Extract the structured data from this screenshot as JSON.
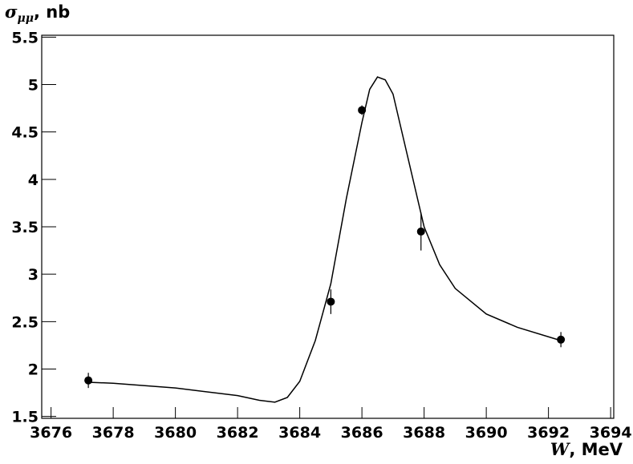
{
  "chart_data": {
    "type": "scatter",
    "ylabel": [
      "σ",
      "μμ",
      ", nb"
    ],
    "xlabel": [
      "W",
      ", MeV"
    ],
    "xlim": [
      3675.7,
      3694.1
    ],
    "ylim": [
      1.48,
      5.52
    ],
    "xticks": [
      3676,
      3678,
      3680,
      3682,
      3684,
      3686,
      3688,
      3690,
      3692,
      3694
    ],
    "yticks": [
      1.5,
      2,
      2.5,
      3,
      3.5,
      4,
      4.5,
      5,
      5.5
    ],
    "series": [
      {
        "kind": "points",
        "color": "#000000",
        "x": [
          3677.2,
          3685.0,
          3686.0,
          3687.9,
          3692.4
        ],
        "values": [
          1.88,
          2.71,
          4.73,
          3.45,
          2.31
        ],
        "errors": [
          0.08,
          0.13,
          0.05,
          0.2,
          0.08
        ]
      },
      {
        "kind": "line",
        "color": "#000000",
        "x": [
          3677.2,
          3678,
          3680,
          3682,
          3682.7,
          3683.2,
          3683.6,
          3684,
          3684.5,
          3685,
          3685.5,
          3686,
          3686.25,
          3686.5,
          3686.75,
          3687,
          3687.5,
          3688,
          3688.5,
          3689,
          3690,
          3691,
          3692.4
        ],
        "values": [
          1.86,
          1.85,
          1.8,
          1.72,
          1.67,
          1.65,
          1.7,
          1.87,
          2.3,
          2.9,
          3.8,
          4.6,
          4.95,
          5.08,
          5.05,
          4.9,
          4.2,
          3.5,
          3.1,
          2.85,
          2.58,
          2.44,
          2.3
        ]
      }
    ]
  }
}
